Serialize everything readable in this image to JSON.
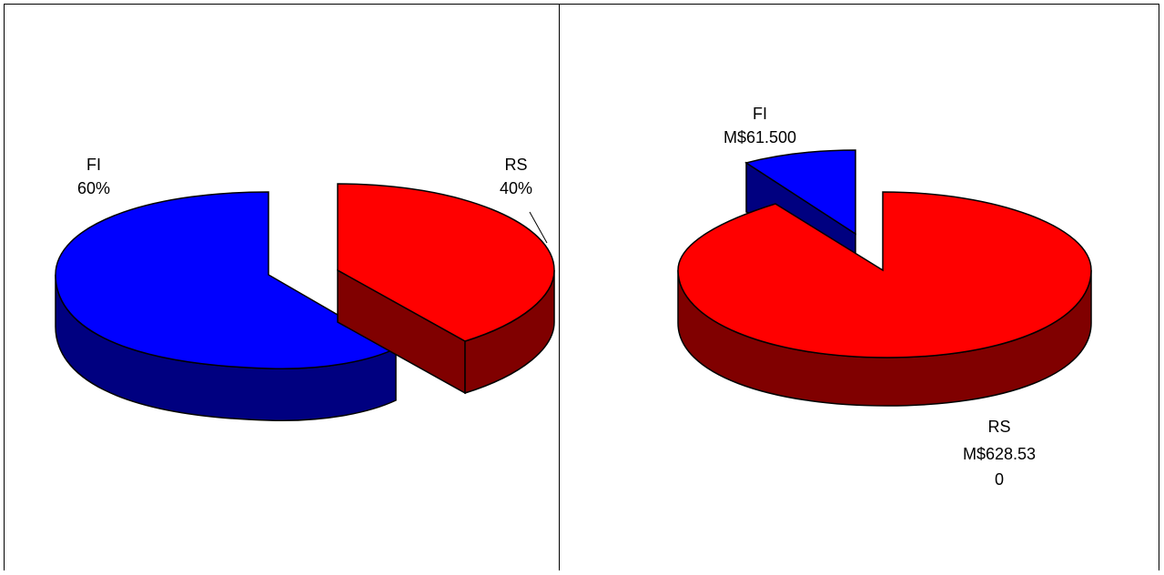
{
  "chart_data": [
    {
      "type": "pie",
      "title": "",
      "slices": [
        {
          "label": "FI",
          "value_text": "60%",
          "value": 60,
          "color": "#0000ff",
          "side_color": "#000080"
        },
        {
          "label": "RS",
          "value_text": "40%",
          "value": 40,
          "color": "#ff0000",
          "side_color": "#800000"
        }
      ],
      "exploded": true,
      "three_d": true
    },
    {
      "type": "pie",
      "title": "",
      "slices": [
        {
          "label": "FI",
          "value_lines": [
            "M$61.500"
          ],
          "value": 61.5,
          "color": "#0000ff",
          "side_color": "#000080"
        },
        {
          "label": "RS",
          "value_lines": [
            "M$628.53",
            "0"
          ],
          "value": 628.53,
          "color": "#ff0000",
          "side_color": "#800000"
        }
      ],
      "exploded": true,
      "three_d": true
    }
  ]
}
